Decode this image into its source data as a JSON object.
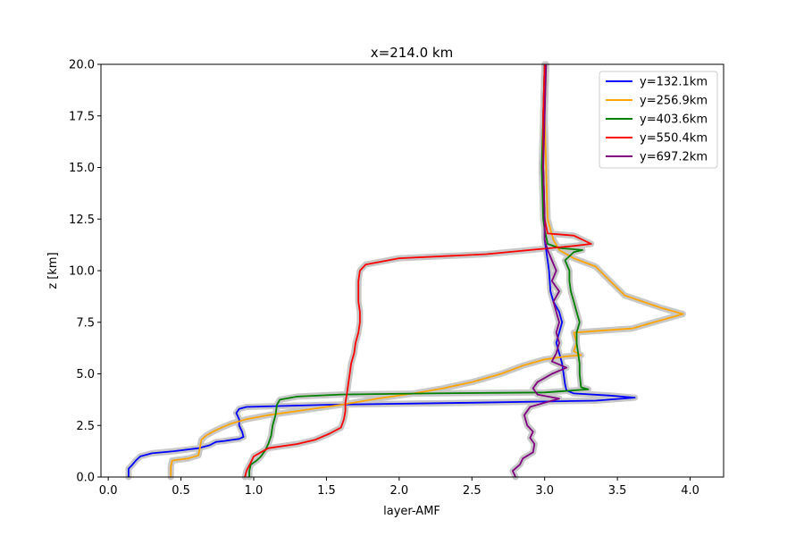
{
  "chart_data": {
    "type": "line",
    "title": "x=214.0 km",
    "xlabel": "layer-AMF",
    "ylabel": "z [km]",
    "xlim": [
      -0.05,
      4.23
    ],
    "ylim": [
      0,
      20
    ],
    "xticks": [
      "0.0",
      "0.5",
      "1.0",
      "1.5",
      "2.0",
      "2.5",
      "3.0",
      "3.5",
      "4.0"
    ],
    "yticks": [
      "0.0",
      "2.5",
      "5.0",
      "7.5",
      "10.0",
      "12.5",
      "15.0",
      "17.5",
      "20.0"
    ],
    "grid": false,
    "legend_position": "top-right",
    "uncertainty_band_color": "#c8c8c8",
    "series": [
      {
        "name": "y=132.1km",
        "color": "#0000ff",
        "points": [
          [
            0.14,
            0.0
          ],
          [
            0.14,
            0.4
          ],
          [
            0.16,
            0.55
          ],
          [
            0.19,
            0.8
          ],
          [
            0.22,
            1.0
          ],
          [
            0.3,
            1.15
          ],
          [
            0.45,
            1.25
          ],
          [
            0.62,
            1.4
          ],
          [
            0.7,
            1.55
          ],
          [
            0.74,
            1.7
          ],
          [
            0.8,
            1.75
          ],
          [
            0.85,
            1.8
          ],
          [
            0.9,
            1.85
          ],
          [
            0.93,
            1.95
          ],
          [
            0.92,
            2.2
          ],
          [
            0.9,
            2.5
          ],
          [
            0.9,
            2.8
          ],
          [
            0.88,
            3.1
          ],
          [
            0.9,
            3.3
          ],
          [
            0.95,
            3.4
          ],
          [
            1.5,
            3.5
          ],
          [
            2.5,
            3.6
          ],
          [
            3.35,
            3.7
          ],
          [
            3.62,
            3.85
          ],
          [
            3.45,
            3.95
          ],
          [
            3.2,
            4.05
          ],
          [
            3.15,
            4.2
          ],
          [
            3.14,
            4.5
          ],
          [
            3.13,
            5.0
          ],
          [
            3.12,
            5.5
          ],
          [
            3.1,
            6.0
          ],
          [
            3.08,
            6.5
          ],
          [
            3.1,
            7.0
          ],
          [
            3.12,
            7.5
          ],
          [
            3.1,
            8.0
          ],
          [
            3.06,
            8.5
          ],
          [
            3.04,
            9.0
          ],
          [
            3.03,
            10.0
          ],
          [
            3.02,
            10.5
          ],
          [
            3.01,
            11.0
          ],
          [
            3.0,
            11.5
          ],
          [
            3.0,
            12.5
          ],
          [
            2.99,
            15.0
          ],
          [
            2.99,
            17.5
          ],
          [
            3.0,
            20.0
          ]
        ]
      },
      {
        "name": "y=256.9km",
        "color": "#ffa500",
        "points": [
          [
            0.43,
            0.0
          ],
          [
            0.43,
            0.5
          ],
          [
            0.44,
            0.8
          ],
          [
            0.55,
            0.9
          ],
          [
            0.62,
            1.05
          ],
          [
            0.63,
            1.4
          ],
          [
            0.64,
            1.8
          ],
          [
            0.67,
            2.0
          ],
          [
            0.72,
            2.2
          ],
          [
            0.78,
            2.4
          ],
          [
            0.85,
            2.6
          ],
          [
            0.95,
            2.8
          ],
          [
            1.1,
            3.0
          ],
          [
            1.3,
            3.2
          ],
          [
            1.6,
            3.5
          ],
          [
            1.85,
            3.8
          ],
          [
            2.1,
            4.05
          ],
          [
            2.3,
            4.3
          ],
          [
            2.5,
            4.6
          ],
          [
            2.7,
            5.0
          ],
          [
            2.85,
            5.4
          ],
          [
            3.0,
            5.7
          ],
          [
            3.15,
            5.85
          ],
          [
            3.25,
            5.9
          ],
          [
            3.2,
            6.1
          ],
          [
            3.22,
            6.5
          ],
          [
            3.2,
            7.0
          ],
          [
            3.6,
            7.2
          ],
          [
            3.95,
            7.9
          ],
          [
            3.8,
            8.2
          ],
          [
            3.55,
            8.8
          ],
          [
            3.45,
            9.5
          ],
          [
            3.35,
            10.2
          ],
          [
            3.2,
            10.6
          ],
          [
            3.1,
            11.0
          ],
          [
            3.06,
            11.5
          ],
          [
            3.04,
            12.0
          ],
          [
            3.02,
            12.5
          ],
          [
            3.01,
            15.0
          ],
          [
            3.0,
            17.5
          ],
          [
            3.01,
            20.0
          ]
        ]
      },
      {
        "name": "y=403.6km",
        "color": "#008000",
        "points": [
          [
            0.97,
            0.0
          ],
          [
            0.97,
            0.3
          ],
          [
            0.98,
            0.6
          ],
          [
            1.02,
            0.8
          ],
          [
            1.05,
            1.0
          ],
          [
            1.08,
            1.3
          ],
          [
            1.1,
            1.6
          ],
          [
            1.12,
            2.0
          ],
          [
            1.13,
            2.5
          ],
          [
            1.15,
            3.0
          ],
          [
            1.16,
            3.5
          ],
          [
            1.18,
            3.75
          ],
          [
            1.3,
            3.9
          ],
          [
            1.6,
            4.0
          ],
          [
            2.2,
            4.05
          ],
          [
            3.0,
            4.1
          ],
          [
            3.3,
            4.25
          ],
          [
            3.25,
            4.35
          ],
          [
            3.24,
            5.0
          ],
          [
            3.24,
            5.5
          ],
          [
            3.23,
            6.0
          ],
          [
            3.22,
            6.5
          ],
          [
            3.22,
            7.0
          ],
          [
            3.24,
            7.5
          ],
          [
            3.22,
            8.0
          ],
          [
            3.2,
            8.5
          ],
          [
            3.18,
            9.0
          ],
          [
            3.17,
            9.5
          ],
          [
            3.17,
            10.0
          ],
          [
            3.14,
            10.5
          ],
          [
            3.2,
            10.9
          ],
          [
            3.26,
            11.0
          ],
          [
            3.1,
            11.1
          ],
          [
            3.02,
            11.3
          ],
          [
            3.0,
            12.0
          ],
          [
            2.99,
            12.5
          ],
          [
            2.98,
            15.0
          ],
          [
            2.99,
            17.5
          ],
          [
            3.0,
            20.0
          ]
        ]
      },
      {
        "name": "y=550.4km",
        "color": "#ff0000",
        "points": [
          [
            0.94,
            0.0
          ],
          [
            0.95,
            0.3
          ],
          [
            0.98,
            0.7
          ],
          [
            1.0,
            1.0
          ],
          [
            1.1,
            1.4
          ],
          [
            1.3,
            1.6
          ],
          [
            1.42,
            1.8
          ],
          [
            1.52,
            2.1
          ],
          [
            1.6,
            2.4
          ],
          [
            1.62,
            2.8
          ],
          [
            1.63,
            3.2
          ],
          [
            1.63,
            3.6
          ],
          [
            1.64,
            4.0
          ],
          [
            1.65,
            4.5
          ],
          [
            1.66,
            5.0
          ],
          [
            1.67,
            5.5
          ],
          [
            1.69,
            6.0
          ],
          [
            1.7,
            6.5
          ],
          [
            1.72,
            7.0
          ],
          [
            1.73,
            7.5
          ],
          [
            1.73,
            8.0
          ],
          [
            1.72,
            8.5
          ],
          [
            1.72,
            9.0
          ],
          [
            1.72,
            9.5
          ],
          [
            1.73,
            10.0
          ],
          [
            1.77,
            10.3
          ],
          [
            2.0,
            10.6
          ],
          [
            2.6,
            10.8
          ],
          [
            2.9,
            11.0
          ],
          [
            3.2,
            11.2
          ],
          [
            3.32,
            11.3
          ],
          [
            3.2,
            11.7
          ],
          [
            3.02,
            11.8
          ],
          [
            3.0,
            12.5
          ],
          [
            2.99,
            15.0
          ],
          [
            2.99,
            17.5
          ],
          [
            3.0,
            20.0
          ]
        ]
      },
      {
        "name": "y=697.2km",
        "color": "#800080",
        "points": [
          [
            2.8,
            0.0
          ],
          [
            2.78,
            0.3
          ],
          [
            2.83,
            0.6
          ],
          [
            2.85,
            0.9
          ],
          [
            2.92,
            1.2
          ],
          [
            2.93,
            1.6
          ],
          [
            2.9,
            1.9
          ],
          [
            2.92,
            2.2
          ],
          [
            2.88,
            2.5
          ],
          [
            2.86,
            3.0
          ],
          [
            2.9,
            3.4
          ],
          [
            3.0,
            3.6
          ],
          [
            3.1,
            3.8
          ],
          [
            2.95,
            4.0
          ],
          [
            2.92,
            4.3
          ],
          [
            2.95,
            4.6
          ],
          [
            3.05,
            5.0
          ],
          [
            3.15,
            5.3
          ],
          [
            3.05,
            5.6
          ],
          [
            3.08,
            6.0
          ],
          [
            3.1,
            6.5
          ],
          [
            3.08,
            7.0
          ],
          [
            3.1,
            7.5
          ],
          [
            3.08,
            8.0
          ],
          [
            3.06,
            8.5
          ],
          [
            3.1,
            9.0
          ],
          [
            3.05,
            9.5
          ],
          [
            3.08,
            10.0
          ],
          [
            3.05,
            10.5
          ],
          [
            3.02,
            11.0
          ],
          [
            3.0,
            11.5
          ],
          [
            3.0,
            12.5
          ],
          [
            2.99,
            15.0
          ],
          [
            3.0,
            17.5
          ],
          [
            3.01,
            20.0
          ]
        ]
      }
    ]
  }
}
